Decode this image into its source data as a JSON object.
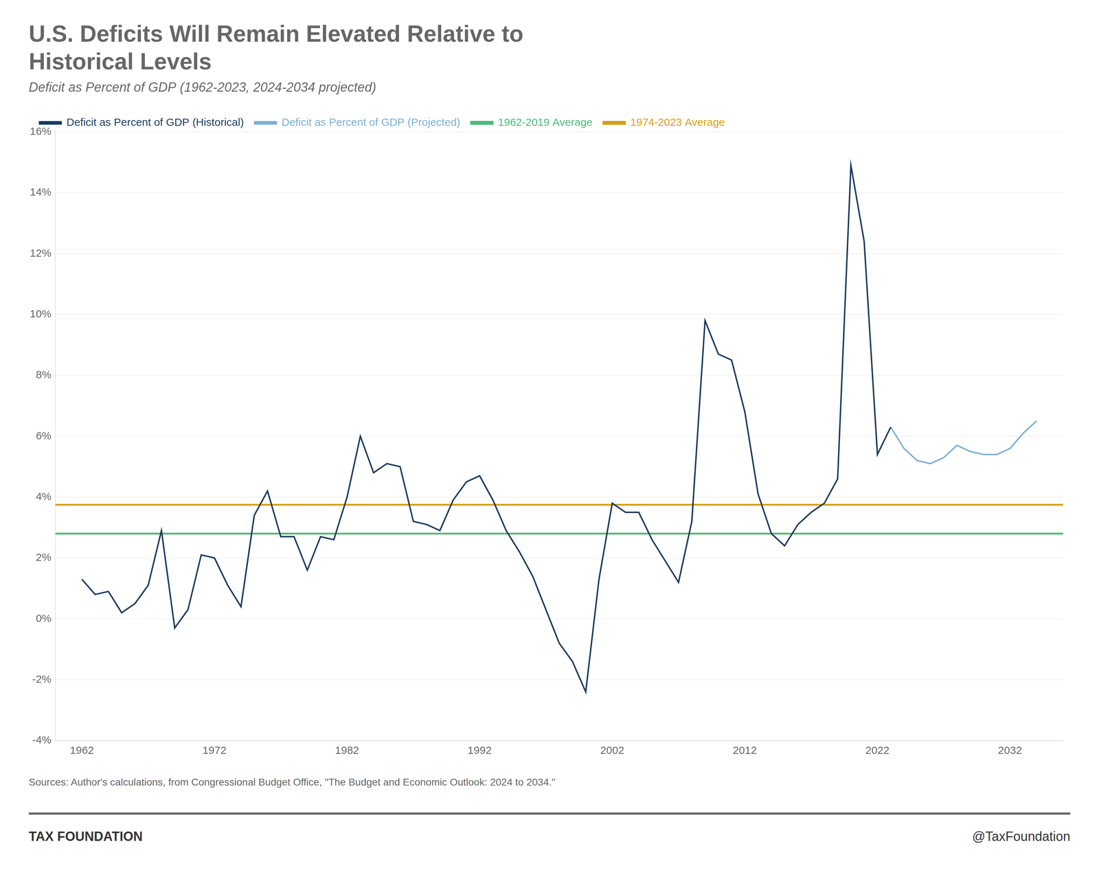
{
  "chart_data": {
    "type": "line",
    "title": [
      "U.S. Deficits Will Remain Elevated Relative to",
      "Historical Levels"
    ],
    "subtitle": "Deficit as Percent of GDP (1962-2023, 2024-2034 projected)",
    "source": "Sources: Author's calculations, from Congressional Budget Office, \"The Budget and Economic Outlook: 2024 to 2034.\"",
    "footer": [
      "TAX FOUNDATION",
      "@TaxFoundation"
    ],
    "series": [
      {
        "name": "Deficit as Percent of GDP (Historical)",
        "color": "#1a3a5c",
        "x": [
          1962,
          1963,
          1964,
          1965,
          1966,
          1967,
          1968,
          1969,
          1970,
          1971,
          1972,
          1973,
          1974,
          1975,
          1976,
          1977,
          1978,
          1979,
          1980,
          1981,
          1982,
          1983,
          1984,
          1985,
          1986,
          1987,
          1988,
          1989,
          1990,
          1991,
          1992,
          1993,
          1994,
          1995,
          1996,
          1997,
          1998,
          1999,
          2000,
          2001,
          2002,
          2003,
          2004,
          2005,
          2006,
          2007,
          2008,
          2009,
          2010,
          2011,
          2012,
          2013,
          2014,
          2015,
          2016,
          2017,
          2018,
          2019,
          2020,
          2021,
          2022,
          2023
        ],
        "values": [
          1.3,
          0.8,
          0.9,
          0.2,
          0.5,
          1.1,
          2.9,
          -0.3,
          0.3,
          2.1,
          2.0,
          1.1,
          0.4,
          3.4,
          4.2,
          2.7,
          2.7,
          1.6,
          2.7,
          2.6,
          4.0,
          6.0,
          4.8,
          5.1,
          5.0,
          3.2,
          3.1,
          2.9,
          3.9,
          4.5,
          4.7,
          3.9,
          2.9,
          2.2,
          1.4,
          0.3,
          -0.8,
          -1.4,
          -2.4,
          1.3,
          3.8,
          3.5,
          3.5,
          2.6,
          1.9,
          1.2,
          3.2,
          9.8,
          8.7,
          8.5,
          6.8,
          4.1,
          2.8,
          2.4,
          3.1,
          3.5,
          3.8,
          4.6,
          14.9,
          12.4,
          5.4,
          6.3
        ]
      },
      {
        "name": "Deficit as Percent of GDP (Projected)",
        "color": "#7bafd4",
        "x": [
          2023,
          2024,
          2025,
          2026,
          2027,
          2028,
          2029,
          2030,
          2031,
          2032,
          2033,
          2034
        ],
        "values": [
          6.3,
          5.6,
          5.2,
          5.1,
          5.3,
          5.7,
          5.5,
          5.4,
          5.4,
          5.6,
          6.1,
          6.5
        ]
      },
      {
        "name": "1962-2019 Average",
        "color": "#4cba7a",
        "y": 2.8
      },
      {
        "name": "1974-2023 Average",
        "color": "#d4a017",
        "y": 3.75
      }
    ],
    "xlim": [
      1960,
      2036
    ],
    "xticks": [
      1962,
      1972,
      1982,
      1992,
      2002,
      2012,
      2022,
      2032
    ],
    "ylim": [
      -4,
      16
    ],
    "yticks": [
      {
        "value": -4,
        "label": "-4%"
      },
      {
        "value": -2,
        "label": "-2%"
      },
      {
        "value": 0,
        "label": "0%"
      },
      {
        "value": 2,
        "label": "2%"
      },
      {
        "value": 4,
        "label": "4%"
      },
      {
        "value": 6,
        "label": "6%"
      },
      {
        "value": 8,
        "label": "8%"
      },
      {
        "value": 10,
        "label": "10%"
      },
      {
        "value": 12,
        "label": "12%"
      },
      {
        "value": 14,
        "label": "14%"
      },
      {
        "value": 16,
        "label": "16%"
      }
    ],
    "grid": "y",
    "legend": "upper left"
  }
}
